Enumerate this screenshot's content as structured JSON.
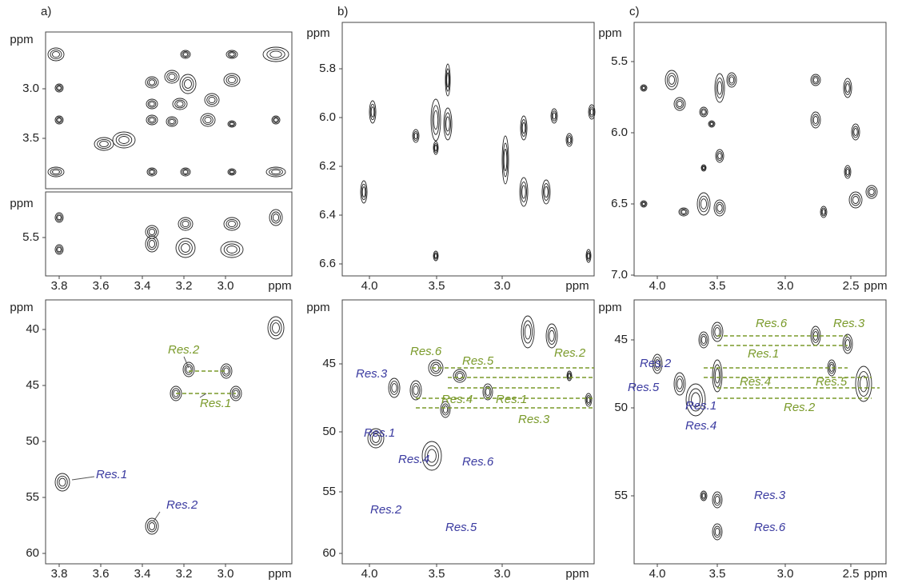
{
  "panels": [
    {
      "label": "a)",
      "plots": [
        {
          "y_unit": "ppm",
          "yticks": [
            "3.0",
            "3.5"
          ]
        },
        {
          "y_unit": "ppm",
          "yticks": [
            "5.5"
          ],
          "x_unit": "ppm",
          "xticks": [
            "3.8",
            "3.6",
            "3.4",
            "3.2",
            "3.0"
          ]
        },
        {
          "y_unit": "ppm",
          "yticks": [
            "40",
            "45",
            "50",
            "55",
            "60"
          ],
          "x_unit": "ppm",
          "xticks": [
            "3.8",
            "3.6",
            "3.4",
            "3.2",
            "3.0"
          ],
          "annotations": [
            "Res.2",
            "Res.1",
            "Res.1",
            "Res.2"
          ]
        }
      ]
    },
    {
      "label": "b)",
      "plots": [
        {
          "y_unit": "ppm",
          "yticks": [
            "5.8",
            "6.0",
            "6.2",
            "6.4",
            "6.6"
          ],
          "x_unit": "ppm",
          "xticks": [
            "4.0",
            "3.5",
            "3.0"
          ]
        },
        {
          "y_unit": "ppm",
          "yticks": [
            "45",
            "50",
            "55",
            "60"
          ],
          "x_unit": "ppm",
          "xticks": [
            "4.0",
            "3.5",
            "3.0"
          ],
          "annotations": [
            "Res.6",
            "Res.5",
            "Res.2",
            "Res.4",
            "Res.1",
            "Res.3",
            "Res.3",
            "Res.1",
            "Res.4",
            "Res.6",
            "Res.2",
            "Res.5"
          ]
        }
      ]
    },
    {
      "label": "c)",
      "plots": [
        {
          "y_unit": "ppm",
          "yticks": [
            "5.5",
            "6.0",
            "6.5",
            "7.0"
          ],
          "x_unit": "ppm",
          "xticks": [
            "4.0",
            "3.5",
            "3.0",
            "2.5"
          ]
        },
        {
          "y_unit": "ppm",
          "yticks": [
            "45",
            "50",
            "55"
          ],
          "x_unit": "ppm",
          "xticks": [
            "4.0",
            "3.5",
            "3.0",
            "2.5"
          ],
          "annotations": [
            "Res.6",
            "Res.3",
            "Res.1",
            "Res.4",
            "Res.5",
            "Res.2",
            "Res.2",
            "Res.5",
            "Res.1",
            "Res.4",
            "Res.3",
            "Res.6"
          ]
        }
      ]
    }
  ]
}
